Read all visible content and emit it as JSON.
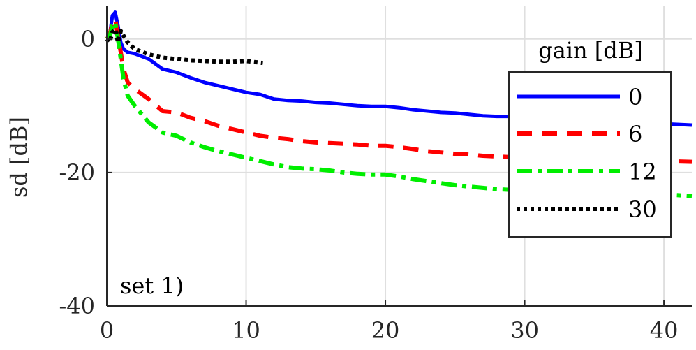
{
  "chart_data": {
    "type": "line",
    "title": "",
    "xlabel": "",
    "ylabel": "sd [dB]",
    "xlim": [
      0,
      42
    ],
    "ylim": [
      -40,
      5
    ],
    "xticks": [
      0,
      10,
      20,
      30,
      40
    ],
    "yticks": [
      0,
      -20,
      -40
    ],
    "xtick_labels": [
      "0",
      "10",
      "20",
      "30",
      "40"
    ],
    "ytick_labels": [
      "0",
      "-20",
      "-40"
    ],
    "grid": true,
    "annotation": "set 1)",
    "legend": {
      "title": "gain [dB]",
      "placement": "right",
      "entries": [
        "0",
        "6",
        "12",
        "30"
      ]
    },
    "series": [
      {
        "name": "0",
        "color": "#0000ff",
        "dash": "solid",
        "x": [
          0,
          0.2,
          0.4,
          0.6,
          0.8,
          1.0,
          1.2,
          1.5,
          2,
          3,
          4,
          5,
          6,
          7,
          8,
          9,
          10,
          11,
          12,
          13,
          14,
          15,
          16,
          17,
          18,
          19,
          20,
          21,
          22,
          23,
          24,
          25,
          26,
          27,
          28,
          29,
          30,
          32,
          34,
          36,
          38,
          40,
          42
        ],
        "y": [
          0,
          0.5,
          3.5,
          4.0,
          2.0,
          -0.5,
          -1.5,
          -2.0,
          -2.2,
          -3.0,
          -4.5,
          -5.0,
          -5.8,
          -6.5,
          -7.0,
          -7.5,
          -8.0,
          -8.3,
          -9.0,
          -9.2,
          -9.3,
          -9.5,
          -9.6,
          -9.8,
          -10.0,
          -10.1,
          -10.1,
          -10.3,
          -10.6,
          -10.8,
          -11.0,
          -11.1,
          -11.3,
          -11.5,
          -11.6,
          -11.6,
          -11.8,
          -12.0,
          -12.2,
          -12.3,
          -12.5,
          -12.7,
          -12.9
        ]
      },
      {
        "name": "6",
        "color": "#ff0000",
        "dash": "dashed",
        "x": [
          0,
          0.2,
          0.4,
          0.6,
          0.8,
          1.0,
          1.2,
          1.5,
          2,
          3,
          4,
          5,
          6,
          7,
          8,
          9,
          10,
          11,
          12,
          13,
          14,
          15,
          16,
          17,
          18,
          19,
          20,
          21,
          22,
          23,
          24,
          25,
          26,
          27,
          28,
          29,
          30,
          32,
          34,
          36,
          38,
          40,
          42
        ],
        "y": [
          0,
          0.5,
          2.5,
          3.0,
          0.5,
          -2.0,
          -4.5,
          -6.5,
          -7.5,
          -9.0,
          -10.8,
          -11.0,
          -11.8,
          -12.3,
          -13.0,
          -13.5,
          -14.0,
          -14.5,
          -14.8,
          -15.0,
          -15.3,
          -15.5,
          -15.6,
          -15.7,
          -15.8,
          -16.0,
          -16.0,
          -16.2,
          -16.5,
          -16.8,
          -17.0,
          -17.2,
          -17.3,
          -17.5,
          -17.6,
          -17.7,
          -17.8,
          -17.9,
          -18.0,
          -18.1,
          -18.2,
          -18.3,
          -18.4
        ]
      },
      {
        "name": "12",
        "color": "#00ee00",
        "dash": "dashdot",
        "x": [
          0,
          0.2,
          0.4,
          0.6,
          0.8,
          1.0,
          1.2,
          1.5,
          2,
          3,
          4,
          5,
          6,
          7,
          8,
          9,
          10,
          11,
          12,
          13,
          14,
          15,
          16,
          17,
          18,
          19,
          20,
          21,
          22,
          23,
          24,
          25,
          26,
          27,
          28,
          29,
          30,
          32,
          34,
          36,
          38,
          40,
          42
        ],
        "y": [
          0,
          0.3,
          2.0,
          2.5,
          0.0,
          -3.0,
          -6.0,
          -8.5,
          -10.0,
          -12.5,
          -14.0,
          -14.5,
          -15.5,
          -16.2,
          -16.8,
          -17.3,
          -17.8,
          -18.3,
          -18.8,
          -19.2,
          -19.4,
          -19.5,
          -19.7,
          -20.0,
          -20.2,
          -20.3,
          -20.3,
          -20.6,
          -21.0,
          -21.3,
          -21.6,
          -21.9,
          -22.1,
          -22.3,
          -22.5,
          -22.6,
          -22.7,
          -22.9,
          -23.0,
          -23.1,
          -23.2,
          -23.3,
          -23.5
        ]
      },
      {
        "name": "30",
        "color": "#000000",
        "dash": "dotted",
        "x": [
          0,
          0.2,
          0.4,
          0.6,
          0.8,
          1.0,
          1.2,
          1.5,
          2,
          3,
          4,
          5,
          6,
          7,
          8,
          9,
          10,
          11.2
        ],
        "y": [
          0,
          -0.5,
          1.0,
          1.5,
          -0.5,
          1.2,
          0.5,
          -0.5,
          -1.5,
          -2.3,
          -2.8,
          -3.0,
          -3.2,
          -3.3,
          -3.4,
          -3.4,
          -3.3,
          -3.6
        ]
      }
    ]
  }
}
